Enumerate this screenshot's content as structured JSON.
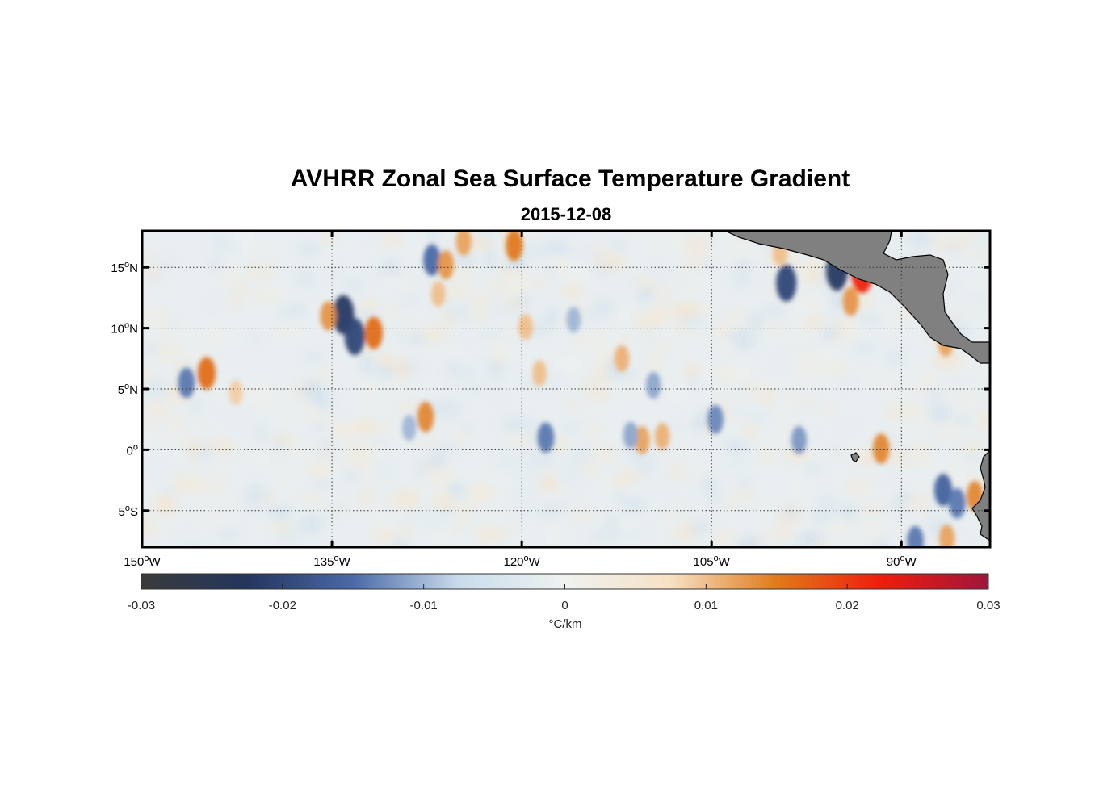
{
  "title": "AVHRR Zonal Sea Surface Temperature Gradient",
  "subtitle": "2015-12-08",
  "map": {
    "lon_range": [
      -150,
      -83
    ],
    "lat_range": [
      -8,
      18
    ],
    "lon_ticks": [
      {
        "value": -150,
        "num": "150",
        "sup": "o",
        "hemi": "W"
      },
      {
        "value": -135,
        "num": "135",
        "sup": "o",
        "hemi": "W"
      },
      {
        "value": -120,
        "num": "120",
        "sup": "o",
        "hemi": "W"
      },
      {
        "value": -105,
        "num": "105",
        "sup": "o",
        "hemi": "W"
      },
      {
        "value": -90,
        "num": "90",
        "sup": "o",
        "hemi": "W"
      }
    ],
    "lat_ticks": [
      {
        "value": 15,
        "num": "15",
        "sup": "o",
        "hemi": "N"
      },
      {
        "value": 10,
        "num": "10",
        "sup": "o",
        "hemi": "N"
      },
      {
        "value": 5,
        "num": "5",
        "sup": "o",
        "hemi": "N"
      },
      {
        "value": 0,
        "num": "0",
        "sup": "o",
        "hemi": ""
      },
      {
        "value": -5,
        "num": "5",
        "sup": "o",
        "hemi": "S"
      }
    ],
    "grid": true,
    "land_color": "#808080",
    "ocean_background": "#e9eef0"
  },
  "colorbar": {
    "range": [
      -0.03,
      0.03
    ],
    "ticks": [
      -0.03,
      -0.02,
      -0.01,
      0,
      0.01,
      0.02,
      0.03
    ],
    "tick_labels": [
      "-0.03",
      "-0.02",
      "-0.01",
      "0",
      "0.01",
      "0.02",
      "0.03"
    ],
    "unit_label": "°C/km",
    "colors": [
      "#3a3a3c",
      "#23365e",
      "#4a6aa8",
      "#c9dcec",
      "#eef2f0",
      "#f7e1c4",
      "#e07a1a",
      "#ef1c0c",
      "#a0153c"
    ]
  },
  "chart_data": {
    "type": "heatmap",
    "title": "AVHRR Zonal Sea Surface Temperature Gradient",
    "subtitle": "2015-12-08",
    "xlabel": "",
    "ylabel": "",
    "xlim": [
      -150,
      -83
    ],
    "ylim": [
      -8,
      18
    ],
    "colorbar_range": [
      -0.03,
      0.03
    ],
    "colorbar_label": "°C/km",
    "features": [
      {
        "lon": -134.1,
        "lat": 11.1,
        "value": -0.022
      },
      {
        "lon": -133.2,
        "lat": 9.3,
        "value": -0.02
      },
      {
        "lon": -135.3,
        "lat": 11.0,
        "value": 0.013
      },
      {
        "lon": -131.7,
        "lat": 9.6,
        "value": 0.016
      },
      {
        "lon": -144.9,
        "lat": 6.3,
        "value": 0.016
      },
      {
        "lon": -146.5,
        "lat": 5.5,
        "value": -0.014
      },
      {
        "lon": -142.6,
        "lat": 4.7,
        "value": 0.009
      },
      {
        "lon": -127.1,
        "lat": 15.6,
        "value": -0.015
      },
      {
        "lon": -126.0,
        "lat": 15.2,
        "value": 0.013
      },
      {
        "lon": -124.6,
        "lat": 17.1,
        "value": 0.012
      },
      {
        "lon": -120.6,
        "lat": 16.8,
        "value": 0.015
      },
      {
        "lon": -126.6,
        "lat": 12.8,
        "value": 0.01
      },
      {
        "lon": -127.6,
        "lat": 2.7,
        "value": 0.014
      },
      {
        "lon": -128.9,
        "lat": 1.8,
        "value": -0.01
      },
      {
        "lon": -118.1,
        "lat": 1.0,
        "value": -0.014
      },
      {
        "lon": -119.7,
        "lat": 10.1,
        "value": 0.01
      },
      {
        "lon": -118.6,
        "lat": 6.3,
        "value": 0.01
      },
      {
        "lon": -115.9,
        "lat": 10.7,
        "value": -0.01
      },
      {
        "lon": -112.1,
        "lat": 7.5,
        "value": 0.011
      },
      {
        "lon": -109.6,
        "lat": 5.3,
        "value": -0.011
      },
      {
        "lon": -110.5,
        "lat": 0.8,
        "value": 0.012
      },
      {
        "lon": -108.9,
        "lat": 1.1,
        "value": 0.011
      },
      {
        "lon": -104.7,
        "lat": 2.5,
        "value": -0.013
      },
      {
        "lon": -99.1,
        "lat": 13.7,
        "value": -0.02
      },
      {
        "lon": -95.1,
        "lat": 14.7,
        "value": -0.022
      },
      {
        "lon": -93.1,
        "lat": 14.5,
        "value": 0.022
      },
      {
        "lon": -94.0,
        "lat": 12.2,
        "value": 0.013
      },
      {
        "lon": -98.1,
        "lat": 0.8,
        "value": -0.012
      },
      {
        "lon": -91.6,
        "lat": 0.1,
        "value": 0.014
      },
      {
        "lon": -86.7,
        "lat": -3.3,
        "value": -0.016
      },
      {
        "lon": -85.6,
        "lat": -4.4,
        "value": -0.014
      },
      {
        "lon": -84.2,
        "lat": -3.8,
        "value": 0.014
      },
      {
        "lon": -86.4,
        "lat": -7.3,
        "value": 0.012
      },
      {
        "lon": -88.9,
        "lat": -7.5,
        "value": -0.014
      },
      {
        "lon": -86.5,
        "lat": 8.8,
        "value": 0.012
      },
      {
        "lon": -111.4,
        "lat": 1.2,
        "value": -0.011
      },
      {
        "lon": -99.6,
        "lat": 16.2,
        "value": 0.01
      }
    ]
  }
}
